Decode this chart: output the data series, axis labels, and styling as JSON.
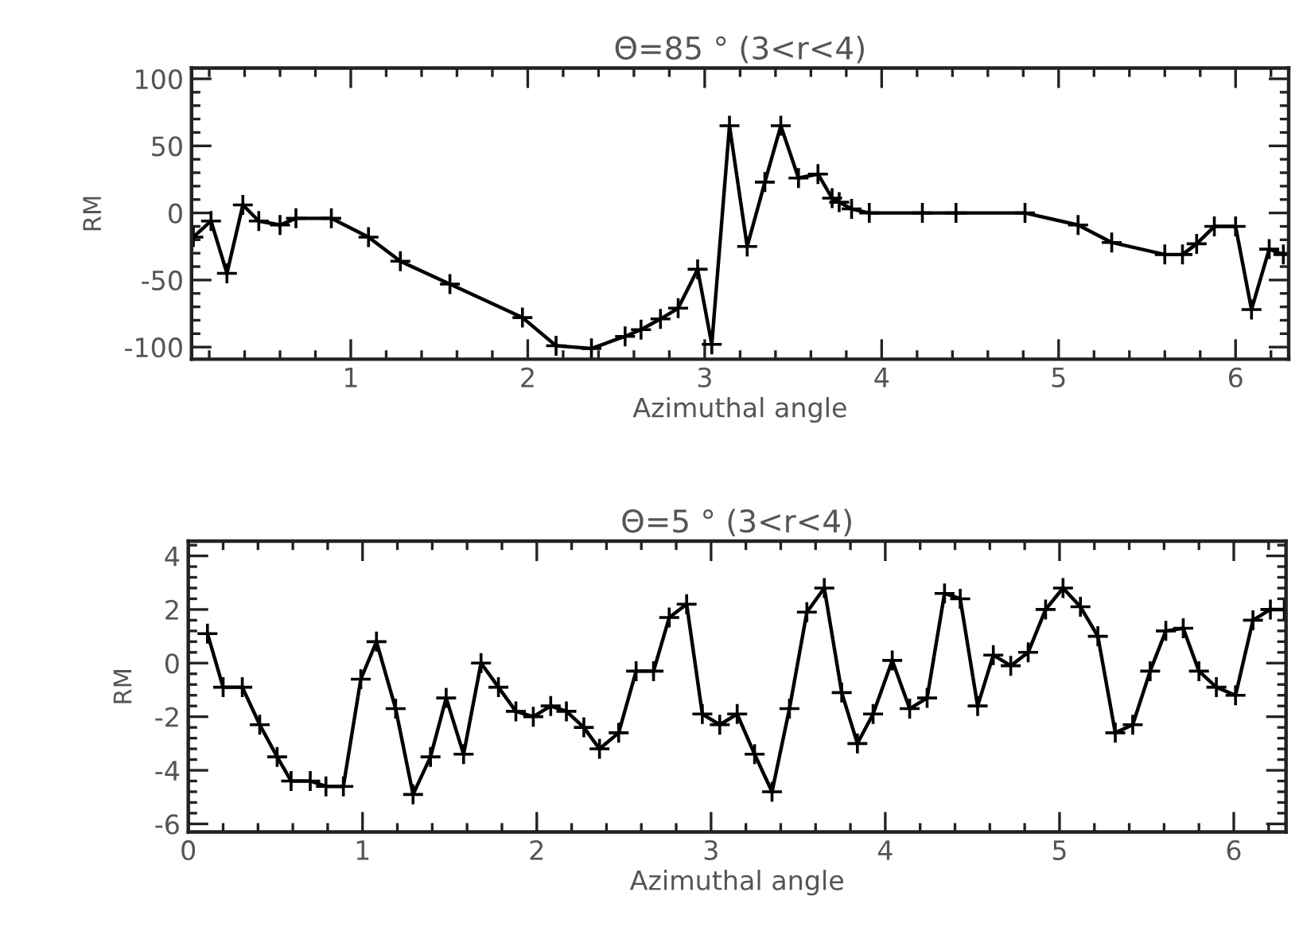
{
  "chart_data": [
    {
      "type": "line",
      "title": "Θ=85 ° (3<r<4)",
      "xlabel": "Azimuthal angle",
      "ylabel": "RM",
      "marker": "cross",
      "line_style": "solid",
      "grid": false,
      "legend": false,
      "xlim": [
        0.1,
        6.3
      ],
      "xticks": [
        1,
        2,
        3,
        4,
        5,
        6
      ],
      "ylim": [
        -109,
        108
      ],
      "yticks": [
        -100,
        -50,
        0,
        50,
        100
      ],
      "series": [
        {
          "color": "#000000",
          "x": [
            0.11,
            0.21,
            0.3,
            0.39,
            0.48,
            0.6,
            0.69,
            0.89,
            1.1,
            1.28,
            1.56,
            1.97,
            2.16,
            2.36,
            2.55,
            2.64,
            2.75,
            2.85,
            2.96,
            3.04,
            3.14,
            3.24,
            3.34,
            3.43,
            3.53,
            3.64,
            3.72,
            3.76,
            3.83,
            3.93,
            4.23,
            4.42,
            4.81,
            5.11,
            5.3,
            5.6,
            5.7,
            5.78,
            5.88,
            6.0,
            6.09,
            6.19,
            6.27
          ],
          "values": [
            -18,
            -6,
            -45,
            6,
            -6,
            -9,
            -4,
            -4,
            -18,
            -36,
            -53,
            -78,
            -99,
            -101,
            -92,
            -87,
            -79,
            -71,
            -42,
            -98,
            65,
            -25,
            23,
            65,
            26,
            29,
            11,
            8,
            3,
            0,
            0,
            0,
            0,
            -9,
            -22,
            -31,
            -31,
            -23,
            -10,
            -10,
            -72,
            -27,
            -31
          ]
        }
      ]
    },
    {
      "type": "line",
      "title": "Θ=5 ° (3<r<4)",
      "xlabel": "Azimuthal angle",
      "ylabel": "RM",
      "marker": "cross",
      "line_style": "solid",
      "grid": false,
      "legend": false,
      "xlim": [
        0,
        6.3
      ],
      "xticks": [
        0,
        1,
        2,
        3,
        4,
        5,
        6
      ],
      "ylim": [
        -6.3,
        4.55
      ],
      "yticks": [
        -6,
        -4,
        -2,
        0,
        2,
        4
      ],
      "series": [
        {
          "color": "#000000",
          "x": [
            0.11,
            0.2,
            0.31,
            0.41,
            0.51,
            0.59,
            0.7,
            0.79,
            0.89,
            0.99,
            1.08,
            1.19,
            1.29,
            1.39,
            1.48,
            1.58,
            1.68,
            1.78,
            1.88,
            1.98,
            2.08,
            2.17,
            2.27,
            2.36,
            2.47,
            2.57,
            2.67,
            2.76,
            2.86,
            2.95,
            3.05,
            3.15,
            3.25,
            3.35,
            3.45,
            3.55,
            3.65,
            3.75,
            3.84,
            3.93,
            4.04,
            4.14,
            4.24,
            4.34,
            4.43,
            4.53,
            4.62,
            4.72,
            4.82,
            4.92,
            5.02,
            5.12,
            5.22,
            5.32,
            5.42,
            5.52,
            5.61,
            5.71,
            5.8,
            5.9,
            6.01,
            6.11,
            6.21,
            6.29
          ],
          "values": [
            1.1,
            -0.9,
            -0.9,
            -2.3,
            -3.5,
            -4.4,
            -4.4,
            -4.6,
            -4.6,
            -0.6,
            0.8,
            -1.7,
            -4.9,
            -3.5,
            -1.3,
            -3.4,
            0.0,
            -0.9,
            -1.8,
            -2.0,
            -1.6,
            -1.8,
            -2.4,
            -3.2,
            -2.6,
            -0.3,
            -0.3,
            1.7,
            2.2,
            -1.9,
            -2.3,
            -1.9,
            -3.4,
            -4.8,
            -1.7,
            1.9,
            2.8,
            -1.1,
            -3.0,
            -1.9,
            0.1,
            -1.7,
            -1.3,
            2.6,
            2.4,
            -1.6,
            0.3,
            -0.1,
            0.4,
            2.0,
            2.8,
            2.1,
            1.0,
            -2.6,
            -2.3,
            -0.3,
            1.2,
            1.3,
            -0.3,
            -0.9,
            -1.2,
            1.6,
            2.0,
            2.0
          ]
        }
      ]
    }
  ]
}
